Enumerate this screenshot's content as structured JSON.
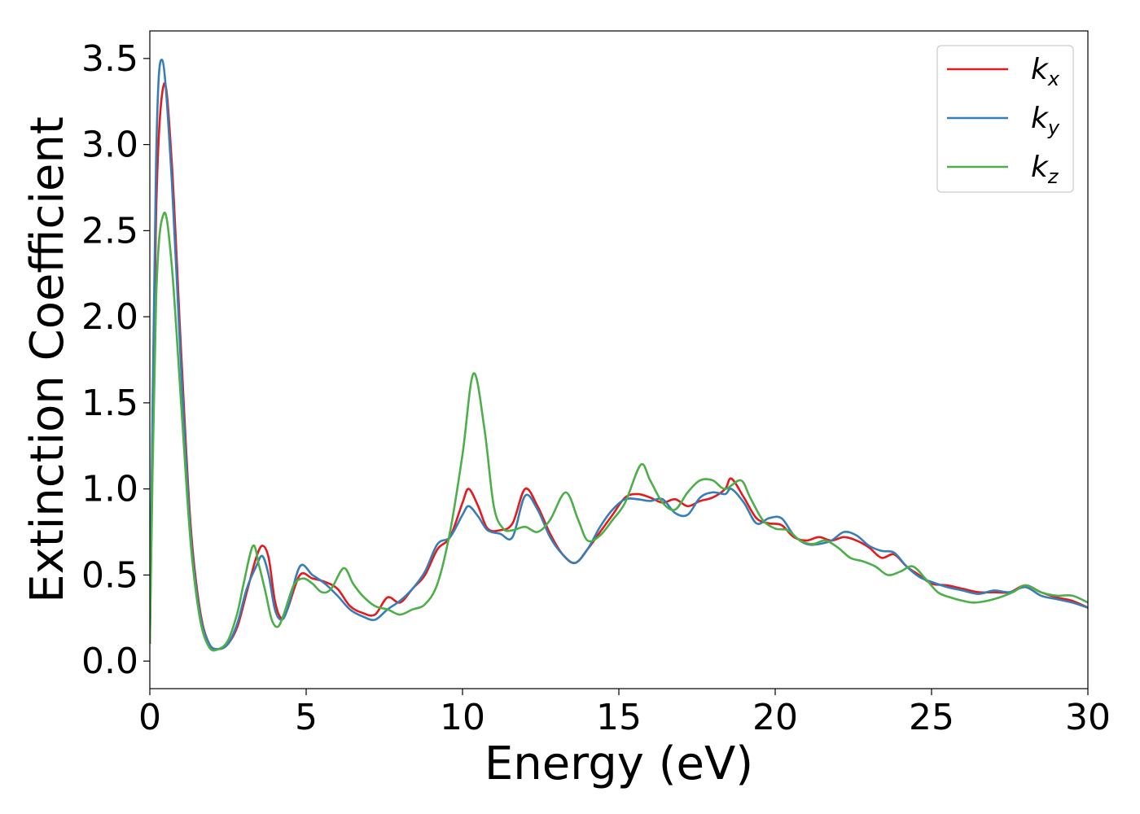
{
  "chart_data": {
    "type": "line",
    "xlabel": "Energy (eV)",
    "ylabel": "Extinction Coefficient",
    "xlim": [
      0,
      30
    ],
    "ylim": [
      -0.16,
      3.66
    ],
    "xticks": [
      0,
      5,
      10,
      15,
      20,
      25,
      30
    ],
    "xtick_labels": [
      "0",
      "5",
      "10",
      "15",
      "20",
      "25",
      "30"
    ],
    "yticks": [
      0.0,
      0.5,
      1.0,
      1.5,
      2.0,
      2.5,
      3.0,
      3.5
    ],
    "ytick_labels": [
      "0.0",
      "0.5",
      "1.0",
      "1.5",
      "2.0",
      "2.5",
      "3.0",
      "3.5"
    ],
    "grid": false,
    "legend_position": "top-right",
    "series": [
      {
        "name": "k",
        "sub": "x",
        "color": "#e41a1c",
        "x": [
          0,
          0.2,
          0.45,
          0.7,
          1.0,
          1.3,
          1.6,
          1.9,
          2.2,
          2.5,
          2.8,
          3.1,
          3.4,
          3.6,
          3.8,
          4.0,
          4.2,
          4.4,
          4.8,
          5.2,
          5.6,
          6.0,
          6.4,
          6.8,
          7.2,
          7.6,
          8.0,
          8.4,
          8.8,
          9.2,
          9.6,
          10.0,
          10.2,
          10.5,
          10.8,
          11.2,
          11.6,
          12.0,
          12.4,
          12.8,
          13.2,
          13.6,
          14.0,
          14.4,
          14.8,
          15.2,
          15.6,
          16.0,
          16.4,
          16.8,
          17.2,
          17.6,
          18.0,
          18.4,
          18.6,
          19.0,
          19.4,
          19.8,
          20.2,
          20.6,
          21.0,
          21.4,
          21.8,
          22.2,
          22.6,
          23.0,
          23.4,
          23.8,
          24.2,
          24.6,
          25.0,
          25.5,
          26.0,
          26.5,
          27.0,
          27.5,
          28.0,
          28.5,
          29.0,
          29.5,
          30.0
        ],
        "y": [
          0.1,
          2.6,
          3.35,
          2.9,
          1.8,
          0.8,
          0.3,
          0.1,
          0.07,
          0.1,
          0.2,
          0.4,
          0.6,
          0.67,
          0.6,
          0.35,
          0.25,
          0.3,
          0.5,
          0.48,
          0.46,
          0.42,
          0.32,
          0.28,
          0.27,
          0.37,
          0.34,
          0.42,
          0.5,
          0.65,
          0.72,
          0.92,
          1.0,
          0.9,
          0.77,
          0.76,
          0.8,
          1.0,
          0.9,
          0.74,
          0.62,
          0.57,
          0.65,
          0.75,
          0.85,
          0.95,
          0.97,
          0.95,
          0.92,
          0.94,
          0.9,
          0.93,
          0.95,
          1.0,
          1.06,
          0.95,
          0.83,
          0.8,
          0.79,
          0.72,
          0.7,
          0.72,
          0.7,
          0.72,
          0.7,
          0.66,
          0.6,
          0.62,
          0.55,
          0.5,
          0.45,
          0.44,
          0.42,
          0.4,
          0.4,
          0.4,
          0.44,
          0.4,
          0.37,
          0.35,
          0.31
        ]
      },
      {
        "name": "k",
        "sub": "y",
        "color": "#377eb8",
        "x": [
          0,
          0.2,
          0.4,
          0.7,
          1.0,
          1.3,
          1.6,
          1.9,
          2.2,
          2.5,
          2.8,
          3.1,
          3.4,
          3.6,
          3.8,
          4.0,
          4.2,
          4.4,
          4.8,
          5.2,
          5.6,
          6.0,
          6.4,
          6.8,
          7.2,
          7.6,
          8.0,
          8.4,
          8.8,
          9.2,
          9.6,
          10.0,
          10.2,
          10.5,
          10.8,
          11.2,
          11.6,
          12.0,
          12.4,
          12.8,
          13.2,
          13.6,
          14.0,
          14.4,
          14.8,
          15.2,
          15.6,
          16.0,
          16.4,
          16.8,
          17.2,
          17.6,
          18.0,
          18.4,
          18.6,
          19.0,
          19.4,
          19.8,
          20.2,
          20.6,
          21.0,
          21.4,
          21.8,
          22.2,
          22.6,
          23.0,
          23.4,
          23.8,
          24.2,
          24.6,
          25.0,
          25.5,
          26.0,
          26.5,
          27.0,
          27.5,
          28.0,
          28.5,
          29.0,
          29.5,
          30.0
        ],
        "y": [
          0.1,
          2.9,
          3.49,
          2.8,
          1.7,
          0.75,
          0.28,
          0.1,
          0.07,
          0.1,
          0.22,
          0.42,
          0.55,
          0.61,
          0.5,
          0.3,
          0.24,
          0.3,
          0.55,
          0.5,
          0.45,
          0.38,
          0.3,
          0.26,
          0.24,
          0.3,
          0.35,
          0.42,
          0.52,
          0.68,
          0.72,
          0.85,
          0.9,
          0.84,
          0.76,
          0.74,
          0.72,
          0.96,
          0.88,
          0.72,
          0.62,
          0.57,
          0.65,
          0.78,
          0.88,
          0.94,
          0.94,
          0.93,
          0.94,
          0.86,
          0.85,
          0.95,
          0.98,
          0.97,
          1.0,
          0.92,
          0.8,
          0.83,
          0.83,
          0.73,
          0.68,
          0.68,
          0.7,
          0.75,
          0.73,
          0.67,
          0.64,
          0.63,
          0.55,
          0.49,
          0.46,
          0.43,
          0.41,
          0.39,
          0.41,
          0.4,
          0.43,
          0.38,
          0.36,
          0.34,
          0.31
        ]
      },
      {
        "name": "k",
        "sub": "z",
        "color": "#4daf4a",
        "x": [
          0,
          0.2,
          0.45,
          0.7,
          1.0,
          1.3,
          1.6,
          1.9,
          2.2,
          2.5,
          2.8,
          3.0,
          3.3,
          3.5,
          3.7,
          3.9,
          4.1,
          4.3,
          4.6,
          4.9,
          5.2,
          5.5,
          5.8,
          6.2,
          6.5,
          6.8,
          7.2,
          7.6,
          8.0,
          8.4,
          8.8,
          9.2,
          9.6,
          10.0,
          10.35,
          10.7,
          11.0,
          11.3,
          11.6,
          12.0,
          12.4,
          12.8,
          13.3,
          13.7,
          14.0,
          14.4,
          14.8,
          15.2,
          15.7,
          16.0,
          16.4,
          16.8,
          17.2,
          17.6,
          18.0,
          18.4,
          18.9,
          19.2,
          19.6,
          20.0,
          20.4,
          20.8,
          21.2,
          21.6,
          22.0,
          22.4,
          22.8,
          23.2,
          23.6,
          24.0,
          24.4,
          24.8,
          25.2,
          25.6,
          26.0,
          26.4,
          27.0,
          27.6,
          28.0,
          28.5,
          29.0,
          29.5,
          30.0
        ],
        "y": [
          0.1,
          2.1,
          2.6,
          2.3,
          1.5,
          0.7,
          0.25,
          0.08,
          0.07,
          0.12,
          0.28,
          0.45,
          0.67,
          0.55,
          0.4,
          0.24,
          0.2,
          0.28,
          0.44,
          0.48,
          0.45,
          0.4,
          0.42,
          0.54,
          0.45,
          0.38,
          0.32,
          0.3,
          0.27,
          0.3,
          0.33,
          0.45,
          0.75,
          1.2,
          1.67,
          1.35,
          0.9,
          0.77,
          0.76,
          0.78,
          0.75,
          0.82,
          0.98,
          0.82,
          0.7,
          0.73,
          0.82,
          0.92,
          1.14,
          1.05,
          0.92,
          0.88,
          0.98,
          1.05,
          1.05,
          1.0,
          1.05,
          0.95,
          0.82,
          0.77,
          0.76,
          0.7,
          0.68,
          0.7,
          0.66,
          0.6,
          0.58,
          0.55,
          0.5,
          0.52,
          0.55,
          0.48,
          0.4,
          0.37,
          0.35,
          0.34,
          0.36,
          0.4,
          0.44,
          0.4,
          0.38,
          0.38,
          0.34
        ]
      }
    ]
  }
}
